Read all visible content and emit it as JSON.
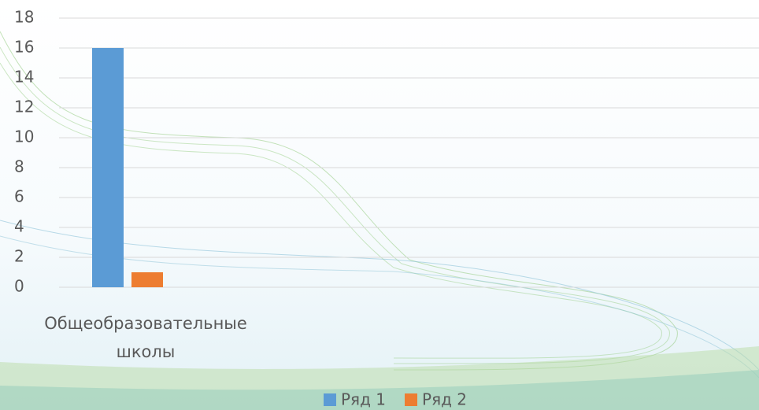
{
  "chart_data": {
    "type": "bar",
    "categories": [
      "Общеобразовательные школы"
    ],
    "series": [
      {
        "name": "Ряд 1",
        "color": "#5b9bd5",
        "values": [
          16
        ]
      },
      {
        "name": "Ряд 2",
        "color": "#ed7d31",
        "values": [
          1
        ]
      }
    ],
    "ylim": [
      0,
      18
    ],
    "yticks": [
      0,
      2,
      4,
      6,
      8,
      10,
      12,
      14,
      16,
      18
    ],
    "grid": true,
    "legend": "bottom"
  }
}
